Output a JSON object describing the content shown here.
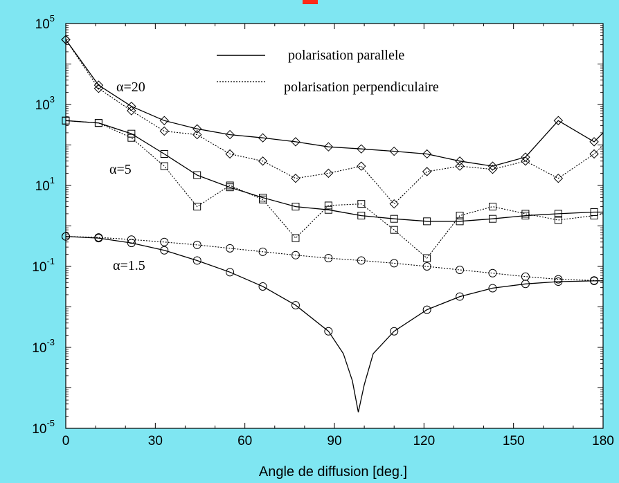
{
  "chart_data": {
    "type": "line",
    "title": "",
    "xlabel": "Angle de diffusion [deg.]",
    "ylabel": "",
    "xlim": [
      0,
      180
    ],
    "ylim": [
      1e-05,
      100000
    ],
    "yscale": "log",
    "grid": false,
    "legend_position": "top-right",
    "x_ticks": [
      "0",
      "30",
      "60",
      "90",
      "120",
      "150",
      "180"
    ],
    "y_ticks": [
      {
        "base": "10",
        "exp": "5",
        "value": 100000
      },
      {
        "base": "10",
        "exp": "3",
        "value": 1000
      },
      {
        "base": "10",
        "exp": "1",
        "value": 10
      },
      {
        "base": "10",
        "exp": "-1",
        "value": 0.1
      },
      {
        "base": "10",
        "exp": "-3",
        "value": 0.001
      },
      {
        "base": "10",
        "exp": "-5",
        "value": 1e-05
      }
    ],
    "legend": [
      {
        "label": "polarisation parallele",
        "style": "solid"
      },
      {
        "label": "polarisation perpendiculaire",
        "style": "dotted"
      }
    ],
    "annotations": [
      "α=20",
      "α=5",
      "α=1.5"
    ],
    "series": [
      {
        "group": "α=1.5",
        "polarisation": "parallele",
        "style": "solid",
        "marker": "circle",
        "points": [
          [
            0,
            0.55
          ],
          [
            11,
            0.5
          ],
          [
            22,
            0.38
          ],
          [
            33,
            0.25
          ],
          [
            44,
            0.14
          ],
          [
            55,
            0.072
          ],
          [
            66,
            0.032
          ],
          [
            77,
            0.011
          ],
          [
            88,
            0.0025
          ],
          [
            93,
            0.0007
          ],
          [
            96,
            0.00015
          ],
          [
            98,
            2.5e-05
          ],
          [
            100,
            0.00012
          ],
          [
            103,
            0.0007
          ],
          [
            110,
            0.0025
          ],
          [
            121,
            0.0085
          ],
          [
            132,
            0.018
          ],
          [
            143,
            0.029
          ],
          [
            154,
            0.037
          ],
          [
            165,
            0.042
          ],
          [
            177,
            0.044
          ],
          [
            180,
            0.044
          ]
        ]
      },
      {
        "group": "α=1.5",
        "polarisation": "perpendiculaire",
        "style": "dotted",
        "marker": "circle",
        "points": [
          [
            0,
            0.55
          ],
          [
            11,
            0.52
          ],
          [
            22,
            0.46
          ],
          [
            33,
            0.4
          ],
          [
            44,
            0.34
          ],
          [
            55,
            0.28
          ],
          [
            66,
            0.23
          ],
          [
            77,
            0.19
          ],
          [
            88,
            0.16
          ],
          [
            99,
            0.14
          ],
          [
            110,
            0.12
          ],
          [
            121,
            0.1
          ],
          [
            132,
            0.082
          ],
          [
            143,
            0.068
          ],
          [
            154,
            0.056
          ],
          [
            165,
            0.048
          ],
          [
            177,
            0.045
          ],
          [
            180,
            0.044
          ]
        ]
      },
      {
        "group": "α=5",
        "polarisation": "parallele",
        "style": "solid",
        "marker": "square",
        "points": [
          [
            0,
            400
          ],
          [
            11,
            350
          ],
          [
            22,
            190
          ],
          [
            33,
            60
          ],
          [
            44,
            18
          ],
          [
            55,
            9
          ],
          [
            66,
            5
          ],
          [
            77,
            3
          ],
          [
            88,
            2.5
          ],
          [
            99,
            1.8
          ],
          [
            110,
            1.5
          ],
          [
            121,
            1.3
          ],
          [
            132,
            1.3
          ],
          [
            143,
            1.5
          ],
          [
            154,
            1.8
          ],
          [
            165,
            2.0
          ],
          [
            177,
            2.2
          ],
          [
            180,
            2.2
          ]
        ]
      },
      {
        "group": "α=5",
        "polarisation": "perpendiculaire",
        "style": "dotted",
        "marker": "square",
        "points": [
          [
            0,
            400
          ],
          [
            11,
            350
          ],
          [
            22,
            150
          ],
          [
            33,
            30
          ],
          [
            44,
            3
          ],
          [
            55,
            10
          ],
          [
            66,
            4.5
          ],
          [
            77,
            0.5
          ],
          [
            88,
            3.2
          ],
          [
            99,
            3.5
          ],
          [
            110,
            0.8
          ],
          [
            121,
            0.16
          ],
          [
            132,
            1.8
          ],
          [
            143,
            3.0
          ],
          [
            154,
            2.0
          ],
          [
            165,
            1.4
          ],
          [
            177,
            1.8
          ],
          [
            180,
            2.0
          ]
        ]
      },
      {
        "group": "α=20",
        "polarisation": "parallele",
        "style": "solid",
        "marker": "diamond",
        "points": [
          [
            0,
            40000
          ],
          [
            11,
            3000
          ],
          [
            22,
            900
          ],
          [
            33,
            400
          ],
          [
            44,
            250
          ],
          [
            55,
            180
          ],
          [
            66,
            150
          ],
          [
            77,
            120
          ],
          [
            88,
            90
          ],
          [
            99,
            80
          ],
          [
            110,
            70
          ],
          [
            121,
            60
          ],
          [
            132,
            40
          ],
          [
            143,
            30
          ],
          [
            154,
            50
          ],
          [
            165,
            400
          ],
          [
            177,
            120
          ],
          [
            180,
            200
          ]
        ]
      },
      {
        "group": "α=20",
        "polarisation": "perpendiculaire",
        "style": "dotted",
        "marker": "diamond",
        "points": [
          [
            0,
            40000
          ],
          [
            11,
            2500
          ],
          [
            22,
            700
          ],
          [
            33,
            220
          ],
          [
            44,
            180
          ],
          [
            55,
            60
          ],
          [
            66,
            40
          ],
          [
            77,
            15
          ],
          [
            88,
            20
          ],
          [
            99,
            30
          ],
          [
            110,
            3.5
          ],
          [
            121,
            22
          ],
          [
            132,
            30
          ],
          [
            143,
            25
          ],
          [
            154,
            40
          ],
          [
            165,
            15
          ],
          [
            177,
            60
          ],
          [
            180,
            100
          ]
        ]
      }
    ]
  }
}
